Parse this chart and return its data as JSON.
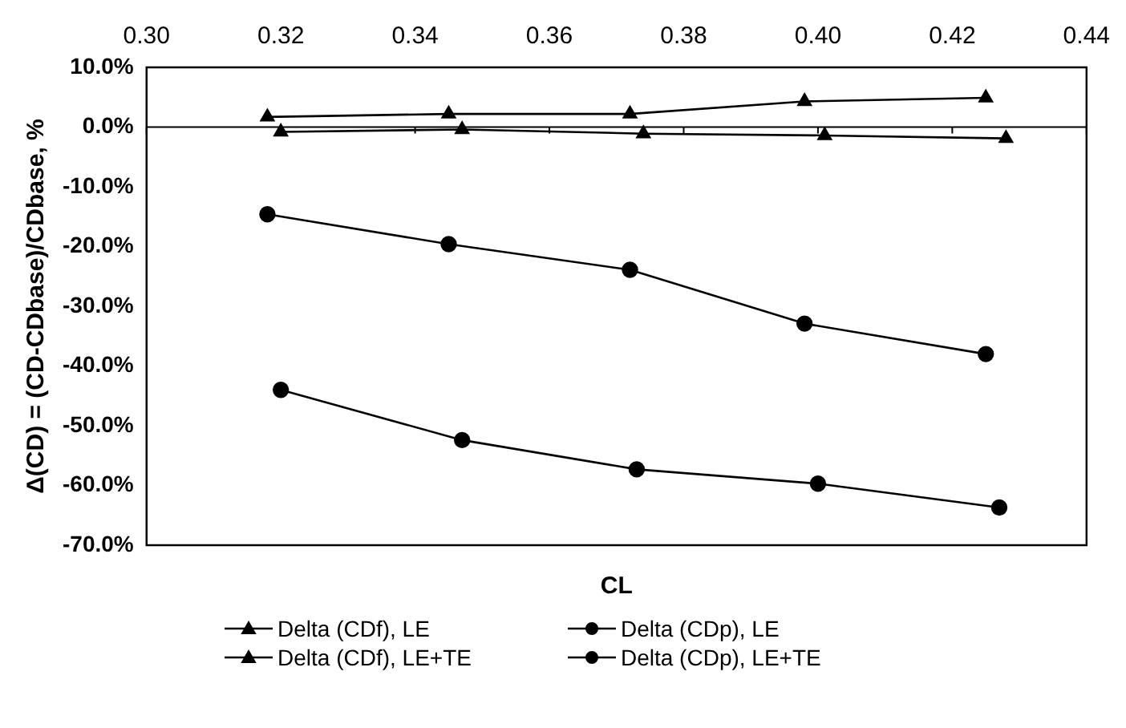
{
  "chart_data": {
    "type": "line",
    "xlabel": "CL",
    "ylabel": "Δ(CD) = (CD-CDbase)/CDbase, %",
    "xlim": [
      0.3,
      0.44
    ],
    "xticks": [
      {
        "value": 0.3,
        "label": "0.30"
      },
      {
        "value": 0.32,
        "label": "0.32"
      },
      {
        "value": 0.34,
        "label": "0.34"
      },
      {
        "value": 0.36,
        "label": "0.36"
      },
      {
        "value": 0.38,
        "label": "0.38"
      },
      {
        "value": 0.4,
        "label": "0.40"
      },
      {
        "value": 0.42,
        "label": "0.42"
      },
      {
        "value": 0.44,
        "label": "0.44"
      }
    ],
    "ylim": [
      -70,
      10
    ],
    "yticks": [
      {
        "value": -70,
        "label": "-70.0%"
      },
      {
        "value": -60,
        "label": "-60.0%"
      },
      {
        "value": -50,
        "label": "-50.0%"
      },
      {
        "value": -40,
        "label": "-40.0%"
      },
      {
        "value": -30,
        "label": "-30.0%"
      },
      {
        "value": -20,
        "label": "-20.0%"
      },
      {
        "value": -10,
        "label": "-10.0%"
      },
      {
        "value": 0,
        "label": "0.0%"
      },
      {
        "value": 10,
        "label": "10.0%"
      }
    ],
    "grid": false,
    "legend": "bottom",
    "line_style": "solid",
    "ref_lines": [
      {
        "axis": "y",
        "value": 0,
        "color": "#000000"
      }
    ],
    "series": [
      {
        "name": "Delta (CDf), LE",
        "color": "#000000",
        "marker": "triangle",
        "x": [
          0.318,
          0.345,
          0.372,
          0.398,
          0.425
        ],
        "values": [
          1.7,
          2.2,
          2.2,
          4.3,
          4.9
        ]
      },
      {
        "name": "Delta (CDf), LE+TE",
        "color": "#000000",
        "marker": "triangle",
        "x": [
          0.32,
          0.347,
          0.374,
          0.401,
          0.428
        ],
        "values": [
          -0.8,
          -0.4,
          -1.1,
          -1.4,
          -1.9
        ]
      },
      {
        "name": "Delta (CDp), LE",
        "color": "#000000",
        "marker": "circle",
        "x": [
          0.318,
          0.345,
          0.372,
          0.398,
          0.425
        ],
        "values": [
          -14.6,
          -19.6,
          -23.9,
          -32.9,
          -38.0
        ]
      },
      {
        "name": "Delta (CDp), LE+TE",
        "color": "#000000",
        "marker": "circle",
        "x": [
          0.32,
          0.347,
          0.373,
          0.4,
          0.427
        ],
        "values": [
          -44.0,
          -52.4,
          -57.3,
          -59.7,
          -63.7
        ]
      }
    ]
  }
}
